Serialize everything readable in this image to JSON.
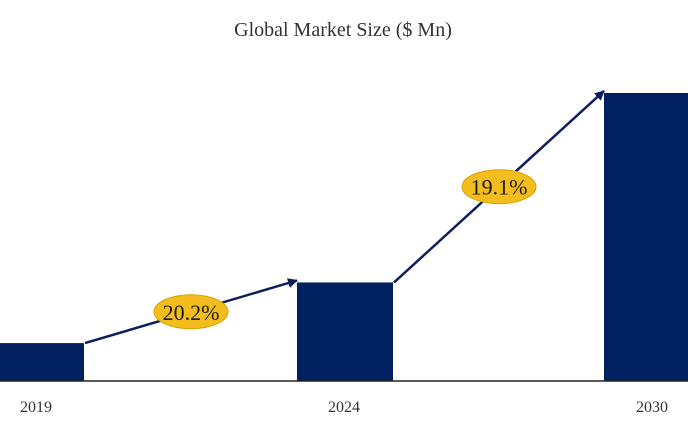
{
  "chart_data": {
    "type": "bar",
    "title": "Global Market Size ($ Mn)",
    "categories": [
      "2019",
      "2024",
      "2030"
    ],
    "values": [
      0.5,
      1.3,
      3.8
    ],
    "value_units": "relative (no value axis shown)",
    "xlabel": "",
    "ylabel": "",
    "grid": false,
    "legend": "none",
    "annotations": [
      {
        "from": "2019",
        "to": "2024",
        "label": "20.2%"
      },
      {
        "from": "2024",
        "to": "2030",
        "label": "19.1%"
      }
    ]
  },
  "colors": {
    "bar": "#002060",
    "arrow": "#0f1f5c",
    "badge_fill": "#f2bd1d",
    "badge_stroke": "#d9a400",
    "axis": "#222222",
    "text": "#333333"
  }
}
